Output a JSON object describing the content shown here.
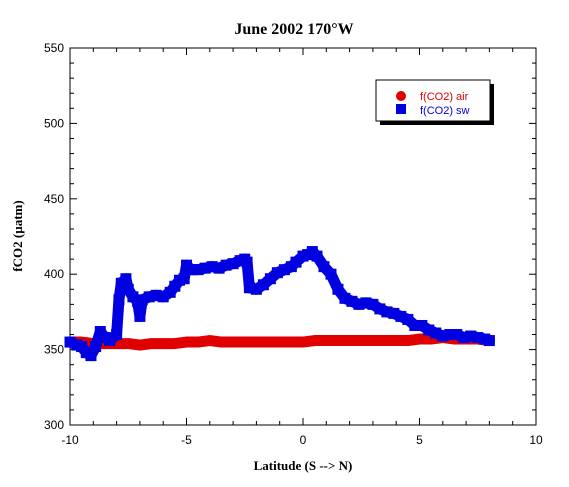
{
  "chart_data": {
    "type": "scatter",
    "title": "June 2002 170°W",
    "xlabel": "Latitude (S --> N)",
    "ylabel": "fCO2 (µatm)",
    "xlim": [
      -10,
      10
    ],
    "ylim": [
      300,
      550
    ],
    "xticks": [
      -10,
      -5,
      0,
      5,
      10
    ],
    "yticks": [
      300,
      350,
      400,
      450,
      500,
      550
    ],
    "xtick_labels": [
      "-10",
      "-5",
      "0",
      "5",
      "10"
    ],
    "ytick_labels": [
      "300",
      "350",
      "400",
      "450",
      "500",
      "550"
    ],
    "grid": false,
    "legend_position": "top-right",
    "series": [
      {
        "name": "f(CO2) air",
        "marker": "circle",
        "color": "#e00000",
        "points": [
          [
            -10.0,
            355
          ],
          [
            -9.5,
            355
          ],
          [
            -9.0,
            354
          ],
          [
            -8.5,
            354
          ],
          [
            -8.0,
            354
          ],
          [
            -7.5,
            354
          ],
          [
            -7.0,
            353
          ],
          [
            -6.5,
            354
          ],
          [
            -6.0,
            354
          ],
          [
            -5.5,
            354
          ],
          [
            -5.0,
            355
          ],
          [
            -4.5,
            355
          ],
          [
            -4.0,
            356
          ],
          [
            -3.5,
            355
          ],
          [
            -3.0,
            355
          ],
          [
            -2.5,
            355
          ],
          [
            -2.0,
            355
          ],
          [
            -1.5,
            355
          ],
          [
            -1.0,
            355
          ],
          [
            -0.5,
            355
          ],
          [
            0.0,
            355
          ],
          [
            0.5,
            356
          ],
          [
            1.0,
            356
          ],
          [
            1.5,
            356
          ],
          [
            2.0,
            356
          ],
          [
            2.5,
            356
          ],
          [
            3.0,
            356
          ],
          [
            3.5,
            356
          ],
          [
            4.0,
            356
          ],
          [
            4.5,
            356
          ],
          [
            5.0,
            357
          ],
          [
            5.5,
            357
          ],
          [
            6.0,
            358
          ],
          [
            6.5,
            357
          ],
          [
            7.0,
            357
          ],
          [
            7.5,
            357
          ],
          [
            8.0,
            356
          ]
        ]
      },
      {
        "name": "f(CO2) sw",
        "marker": "square",
        "color": "#0000e0",
        "points": [
          [
            -10.0,
            355
          ],
          [
            -9.7,
            353
          ],
          [
            -9.5,
            352
          ],
          [
            -9.3,
            348
          ],
          [
            -9.1,
            346
          ],
          [
            -8.9,
            352
          ],
          [
            -8.7,
            362
          ],
          [
            -8.5,
            358
          ],
          [
            -8.3,
            356
          ],
          [
            -8.0,
            360
          ],
          [
            -7.9,
            383
          ],
          [
            -7.8,
            394
          ],
          [
            -7.6,
            397
          ],
          [
            -7.5,
            390
          ],
          [
            -7.3,
            385
          ],
          [
            -7.1,
            382
          ],
          [
            -7.0,
            372
          ],
          [
            -6.9,
            383
          ],
          [
            -6.6,
            385
          ],
          [
            -6.3,
            386
          ],
          [
            -6.0,
            385
          ],
          [
            -5.7,
            388
          ],
          [
            -5.5,
            392
          ],
          [
            -5.3,
            396
          ],
          [
            -5.1,
            397
          ],
          [
            -5.0,
            406
          ],
          [
            -4.8,
            403
          ],
          [
            -4.5,
            403
          ],
          [
            -4.2,
            404
          ],
          [
            -3.9,
            405
          ],
          [
            -3.6,
            404
          ],
          [
            -3.3,
            406
          ],
          [
            -3.0,
            407
          ],
          [
            -2.7,
            409
          ],
          [
            -2.5,
            410
          ],
          [
            -2.4,
            408
          ],
          [
            -2.3,
            391
          ],
          [
            -2.0,
            390
          ],
          [
            -1.7,
            393
          ],
          [
            -1.4,
            397
          ],
          [
            -1.1,
            401
          ],
          [
            -0.8,
            403
          ],
          [
            -0.5,
            405
          ],
          [
            -0.3,
            408
          ],
          [
            0.0,
            412
          ],
          [
            0.2,
            413
          ],
          [
            0.4,
            415
          ],
          [
            0.6,
            412
          ],
          [
            0.9,
            405
          ],
          [
            1.2,
            400
          ],
          [
            1.5,
            390
          ],
          [
            1.8,
            384
          ],
          [
            2.1,
            382
          ],
          [
            2.4,
            380
          ],
          [
            2.7,
            381
          ],
          [
            3.0,
            380
          ],
          [
            3.3,
            377
          ],
          [
            3.6,
            375
          ],
          [
            3.9,
            374
          ],
          [
            4.2,
            372
          ],
          [
            4.5,
            370
          ],
          [
            4.8,
            366
          ],
          [
            5.1,
            366
          ],
          [
            5.4,
            363
          ],
          [
            5.7,
            361
          ],
          [
            6.0,
            359
          ],
          [
            6.3,
            360
          ],
          [
            6.6,
            360
          ],
          [
            6.9,
            358
          ],
          [
            7.2,
            359
          ],
          [
            7.5,
            358
          ],
          [
            7.8,
            357
          ],
          [
            8.0,
            356
          ]
        ]
      }
    ]
  },
  "colors": {
    "air": "#e00000",
    "sw": "#0000e0",
    "axis": "#000000"
  }
}
